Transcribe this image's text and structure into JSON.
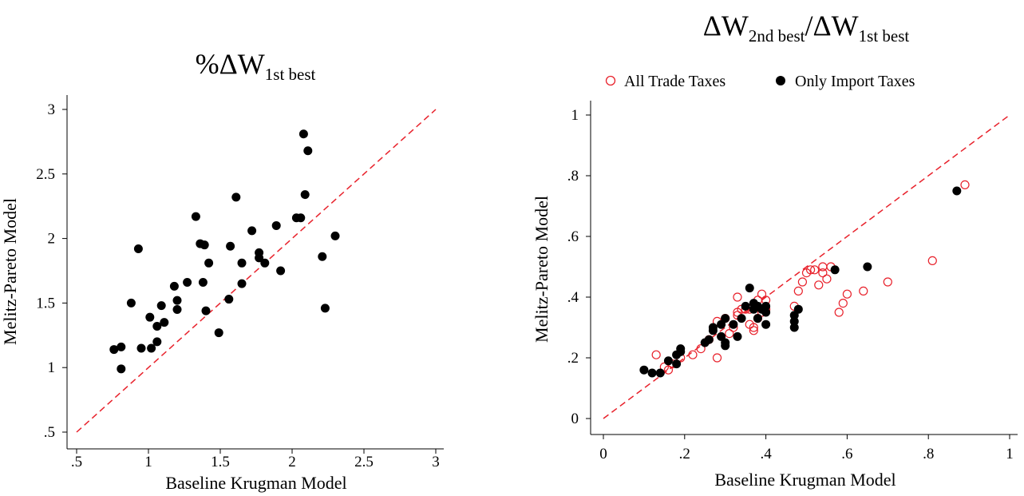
{
  "chart_data": [
    {
      "type": "scatter",
      "title_main": "%ΔW",
      "title_sub": "1st best",
      "xlabel": "Baseline Krugman Model",
      "ylabel": "Melitz-Pareto Model",
      "xlim": [
        0.5,
        3
      ],
      "ylim": [
        0.5,
        3
      ],
      "xticks": [
        0.5,
        1,
        1.5,
        2,
        2.5,
        3
      ],
      "xtick_labels": [
        ".5",
        "1",
        "1.5",
        "2",
        "2.5",
        "3"
      ],
      "yticks": [
        0.5,
        1,
        1.5,
        2,
        2.5,
        3
      ],
      "ytick_labels": [
        ".5",
        "1",
        "1.5",
        "2",
        "2.5",
        "3"
      ],
      "reference_line": "45-degree dashed, red",
      "series": [
        {
          "marker": "filled-circle",
          "color": "#000000",
          "points": [
            [
              0.76,
              1.14
            ],
            [
              0.81,
              1.16
            ],
            [
              0.81,
              0.99
            ],
            [
              0.88,
              1.5
            ],
            [
              0.93,
              1.92
            ],
            [
              0.95,
              1.15
            ],
            [
              1.01,
              1.39
            ],
            [
              1.02,
              1.15
            ],
            [
              1.06,
              1.32
            ],
            [
              1.06,
              1.2
            ],
            [
              1.09,
              1.48
            ],
            [
              1.11,
              1.35
            ],
            [
              1.18,
              1.63
            ],
            [
              1.2,
              1.45
            ],
            [
              1.2,
              1.52
            ],
            [
              1.27,
              1.66
            ],
            [
              1.33,
              2.17
            ],
            [
              1.36,
              1.96
            ],
            [
              1.38,
              1.66
            ],
            [
              1.39,
              1.95
            ],
            [
              1.4,
              1.44
            ],
            [
              1.42,
              1.81
            ],
            [
              1.49,
              1.27
            ],
            [
              1.56,
              1.53
            ],
            [
              1.57,
              1.94
            ],
            [
              1.61,
              2.32
            ],
            [
              1.65,
              1.81
            ],
            [
              1.65,
              1.65
            ],
            [
              1.72,
              2.06
            ],
            [
              1.77,
              1.89
            ],
            [
              1.77,
              1.85
            ],
            [
              1.81,
              1.81
            ],
            [
              1.89,
              2.1
            ],
            [
              1.92,
              1.75
            ],
            [
              2.03,
              2.16
            ],
            [
              2.06,
              2.16
            ],
            [
              2.08,
              2.81
            ],
            [
              2.09,
              2.34
            ],
            [
              2.11,
              2.68
            ],
            [
              2.21,
              1.86
            ],
            [
              2.23,
              1.46
            ],
            [
              2.3,
              2.02
            ]
          ]
        }
      ]
    },
    {
      "type": "scatter",
      "title_main_a": "ΔW",
      "title_sub_a": "2nd best",
      "title_slash": "/",
      "title_main_b": "ΔW",
      "title_sub_b": "1st best",
      "xlabel": "Baseline Krugman Model",
      "ylabel": "Melitz-Pareto Model",
      "xlim": [
        0,
        1
      ],
      "ylim": [
        0,
        1
      ],
      "xticks": [
        0,
        0.2,
        0.4,
        0.6,
        0.8,
        1
      ],
      "xtick_labels": [
        "0",
        ".2",
        ".4",
        ".6",
        ".8",
        "1"
      ],
      "yticks": [
        0,
        0.2,
        0.4,
        0.6,
        0.8,
        1
      ],
      "ytick_labels": [
        "0",
        ".2",
        ".4",
        ".6",
        ".8",
        "1"
      ],
      "reference_line": "45-degree dashed, red",
      "legend_position": "top",
      "series": [
        {
          "name": "All Trade Taxes",
          "marker": "hollow-circle",
          "color": "#e8212b",
          "points": [
            [
              0.13,
              0.21
            ],
            [
              0.15,
              0.17
            ],
            [
              0.16,
              0.16
            ],
            [
              0.17,
              0.18
            ],
            [
              0.19,
              0.2
            ],
            [
              0.22,
              0.21
            ],
            [
              0.24,
              0.23
            ],
            [
              0.26,
              0.26
            ],
            [
              0.28,
              0.2
            ],
            [
              0.28,
              0.32
            ],
            [
              0.3,
              0.33
            ],
            [
              0.31,
              0.28
            ],
            [
              0.32,
              0.3
            ],
            [
              0.33,
              0.34
            ],
            [
              0.33,
              0.35
            ],
            [
              0.33,
              0.4
            ],
            [
              0.34,
              0.36
            ],
            [
              0.35,
              0.36
            ],
            [
              0.36,
              0.31
            ],
            [
              0.36,
              0.36
            ],
            [
              0.37,
              0.29
            ],
            [
              0.37,
              0.3
            ],
            [
              0.38,
              0.33
            ],
            [
              0.38,
              0.39
            ],
            [
              0.39,
              0.35
            ],
            [
              0.39,
              0.41
            ],
            [
              0.4,
              0.36
            ],
            [
              0.4,
              0.39
            ],
            [
              0.47,
              0.37
            ],
            [
              0.48,
              0.42
            ],
            [
              0.49,
              0.45
            ],
            [
              0.5,
              0.48
            ],
            [
              0.51,
              0.49
            ],
            [
              0.52,
              0.49
            ],
            [
              0.53,
              0.44
            ],
            [
              0.54,
              0.48
            ],
            [
              0.54,
              0.5
            ],
            [
              0.55,
              0.46
            ],
            [
              0.56,
              0.5
            ],
            [
              0.58,
              0.35
            ],
            [
              0.59,
              0.38
            ],
            [
              0.6,
              0.41
            ],
            [
              0.64,
              0.42
            ],
            [
              0.7,
              0.45
            ],
            [
              0.81,
              0.52
            ],
            [
              0.89,
              0.77
            ]
          ]
        },
        {
          "name": "Only Import Taxes",
          "marker": "filled-circle",
          "color": "#000000",
          "points": [
            [
              0.1,
              0.16
            ],
            [
              0.12,
              0.15
            ],
            [
              0.14,
              0.15
            ],
            [
              0.16,
              0.19
            ],
            [
              0.18,
              0.18
            ],
            [
              0.18,
              0.21
            ],
            [
              0.19,
              0.22
            ],
            [
              0.19,
              0.23
            ],
            [
              0.25,
              0.25
            ],
            [
              0.26,
              0.26
            ],
            [
              0.27,
              0.29
            ],
            [
              0.27,
              0.3
            ],
            [
              0.29,
              0.31
            ],
            [
              0.29,
              0.27
            ],
            [
              0.3,
              0.25
            ],
            [
              0.3,
              0.24
            ],
            [
              0.3,
              0.33
            ],
            [
              0.32,
              0.31
            ],
            [
              0.33,
              0.27
            ],
            [
              0.34,
              0.33
            ],
            [
              0.35,
              0.37
            ],
            [
              0.36,
              0.43
            ],
            [
              0.37,
              0.38
            ],
            [
              0.37,
              0.36
            ],
            [
              0.38,
              0.33
            ],
            [
              0.38,
              0.37
            ],
            [
              0.39,
              0.36
            ],
            [
              0.4,
              0.37
            ],
            [
              0.4,
              0.35
            ],
            [
              0.4,
              0.31
            ],
            [
              0.47,
              0.32
            ],
            [
              0.47,
              0.3
            ],
            [
              0.47,
              0.34
            ],
            [
              0.48,
              0.36
            ],
            [
              0.57,
              0.49
            ],
            [
              0.65,
              0.5
            ],
            [
              0.87,
              0.75
            ]
          ]
        }
      ]
    }
  ]
}
